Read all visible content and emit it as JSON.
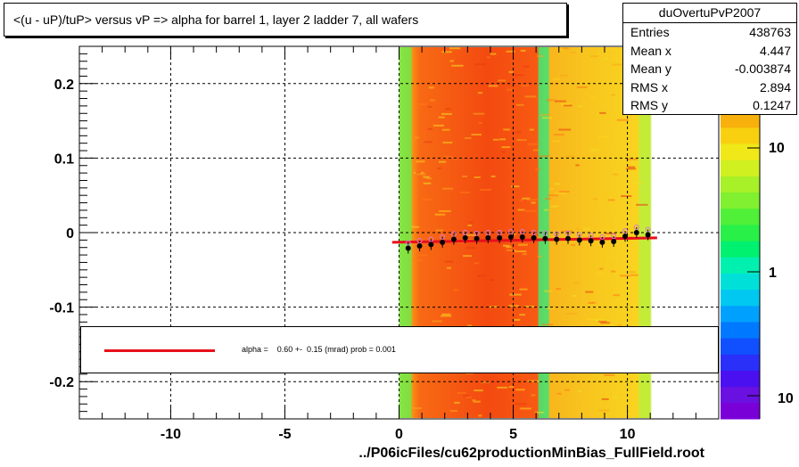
{
  "title": "<(u - uP)/tuP> versus   vP => alpha for barrel 1, layer 2 ladder 7, all wafers",
  "footer": "../P06icFiles/cu62productionMinBias_FullField.root",
  "stats": {
    "name": "duOvertuPvP2007",
    "rows": [
      {
        "label": "Entries",
        "value": "438763"
      },
      {
        "label": "Mean x",
        "value": "4.447"
      },
      {
        "label": "Mean y",
        "value": "-0.003874"
      },
      {
        "label": "RMS x",
        "value": "2.894"
      },
      {
        "label": "RMS y",
        "value": "0.1247"
      }
    ]
  },
  "legend": {
    "text": "alpha =    0.60 +-  0.15 (mrad) prob = 0.001",
    "line_color": "#e8101a"
  },
  "colors": {
    "fit_line": "#e8101a",
    "markers": "#000000",
    "open_markers": "#d07bd0"
  },
  "chart_data": {
    "type": "heatmap",
    "title": "<(u - uP)/tuP> versus   vP => alpha for barrel 1, layer 2 ladder 7, all wafers",
    "xlim": [
      -14,
      14
    ],
    "ylim": [
      -0.25,
      0.25
    ],
    "x_ticks": [
      -10,
      -5,
      0,
      5,
      10
    ],
    "y_ticks": [
      -0.2,
      -0.1,
      0,
      0.1,
      0.2
    ],
    "x_tick_labels": [
      "-10",
      "-5",
      "0",
      "5",
      "10"
    ],
    "y_tick_labels": [
      "-0.2",
      "-0.1",
      "0",
      "0.1",
      "0.2"
    ],
    "grid": true,
    "heatmap_x_range": [
      0,
      11
    ],
    "colorbar_ticks": [
      10,
      1
    ],
    "colorbar_tick_labels": [
      "10",
      "1"
    ],
    "colorbar_bottom_label": "10",
    "profile": {
      "name": "profile points",
      "x": [
        0.4,
        0.9,
        1.4,
        1.9,
        2.4,
        2.9,
        3.4,
        3.9,
        4.4,
        4.9,
        5.4,
        5.9,
        6.4,
        6.9,
        7.4,
        7.9,
        8.4,
        8.9,
        9.4,
        9.9,
        10.4,
        10.9
      ],
      "y": [
        -0.021,
        -0.018,
        -0.016,
        -0.013,
        -0.009,
        -0.007,
        -0.008,
        -0.007,
        -0.007,
        -0.006,
        -0.006,
        -0.007,
        -0.008,
        -0.009,
        -0.008,
        -0.01,
        -0.011,
        -0.013,
        -0.012,
        -0.005,
        0.0,
        -0.003
      ]
    },
    "fit": {
      "x": [
        -0.3,
        11.3
      ],
      "y": [
        -0.013,
        -0.007
      ]
    }
  }
}
